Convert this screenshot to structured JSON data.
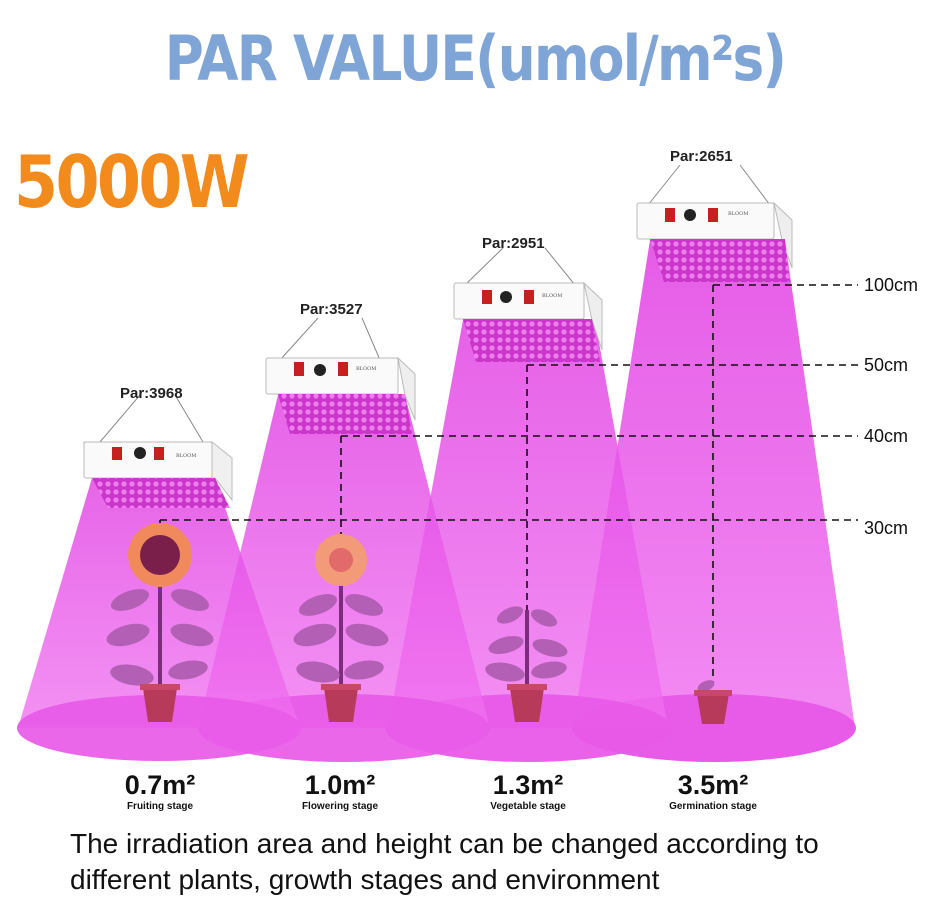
{
  "title": "PAR VALUE(umol/m²s)",
  "wattage": "5000W",
  "colors": {
    "title": "#7fa4d6",
    "wattage": "#f28a1c",
    "light": "#e64ce6",
    "panel": "#ffffff"
  },
  "lamps": [
    {
      "par_label": "Par:3968",
      "brand": "BLOOM",
      "stage": "Fruiting stage",
      "area": "0.7m²"
    },
    {
      "par_label": "Par:3527",
      "brand": "BLOOM",
      "stage": "Flowering stage",
      "area": "1.0m²"
    },
    {
      "par_label": "Par:2951",
      "brand": "BLOOM",
      "stage": "Vegetable stage",
      "area": "1.3m²"
    },
    {
      "par_label": "Par:2651",
      "brand": "BLOOM",
      "stage": "Germination stage",
      "area": "3.5m²"
    }
  ],
  "heights": [
    "100cm",
    "50cm",
    "40cm",
    "30cm"
  ],
  "footer": {
    "line1": "The irradiation area and height can be changed according to",
    "line2": "different plants, growth stages and environment"
  }
}
